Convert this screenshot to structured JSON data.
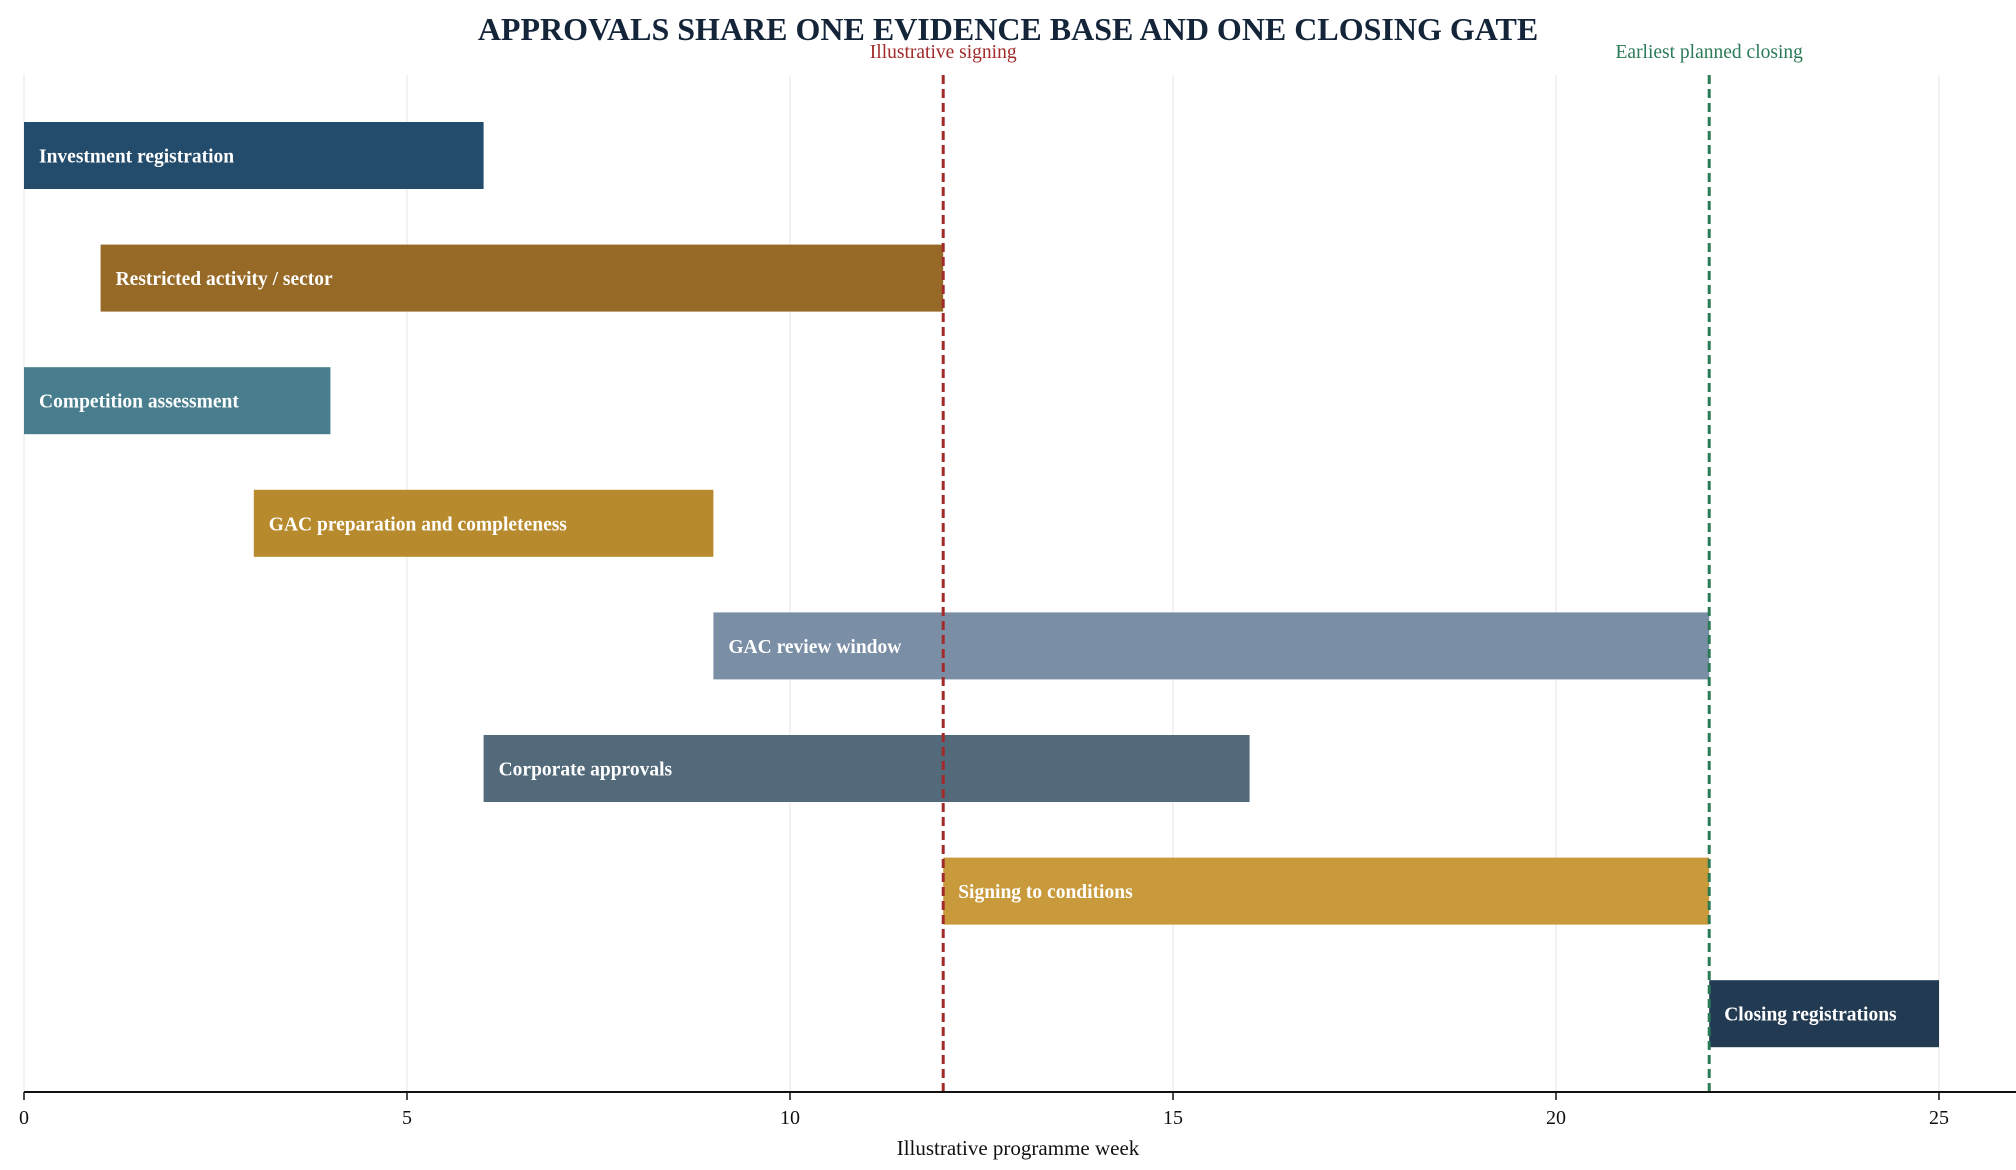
{
  "chart_data": {
    "type": "gantt",
    "title": "APPROVALS SHARE ONE EVIDENCE BASE AND ONE CLOSING GATE",
    "xlabel": "Illustrative programme week",
    "xlim": [
      0,
      26
    ],
    "xticks": [
      0,
      5,
      10,
      15,
      20,
      25
    ],
    "grid": "vertical",
    "tasks": [
      {
        "label": "Investment registration",
        "start": 0,
        "end": 6,
        "color": "#234b6b"
      },
      {
        "label": "Restricted activity / sector",
        "start": 1,
        "end": 12,
        "color": "#976926"
      },
      {
        "label": "Competition assessment",
        "start": 0,
        "end": 4,
        "color": "#477d8c"
      },
      {
        "label": "GAC preparation and completeness",
        "start": 3,
        "end": 9,
        "color": "#b78a2d"
      },
      {
        "label": "GAC review window",
        "start": 9,
        "end": 22,
        "color": "#7a8ea5"
      },
      {
        "label": "Corporate approvals",
        "start": 6,
        "end": 16,
        "color": "#536a7a"
      },
      {
        "label": "Signing to conditions",
        "start": 12,
        "end": 22,
        "color": "#c89a3c"
      },
      {
        "label": "Closing registrations",
        "start": 22,
        "end": 25,
        "color": "#223a52"
      }
    ],
    "markers": [
      {
        "label": "Illustrative signing",
        "x": 12,
        "color": "#a12a2a"
      },
      {
        "label": "Earliest planned closing",
        "x": 22,
        "color": "#2a7a55"
      }
    ]
  }
}
